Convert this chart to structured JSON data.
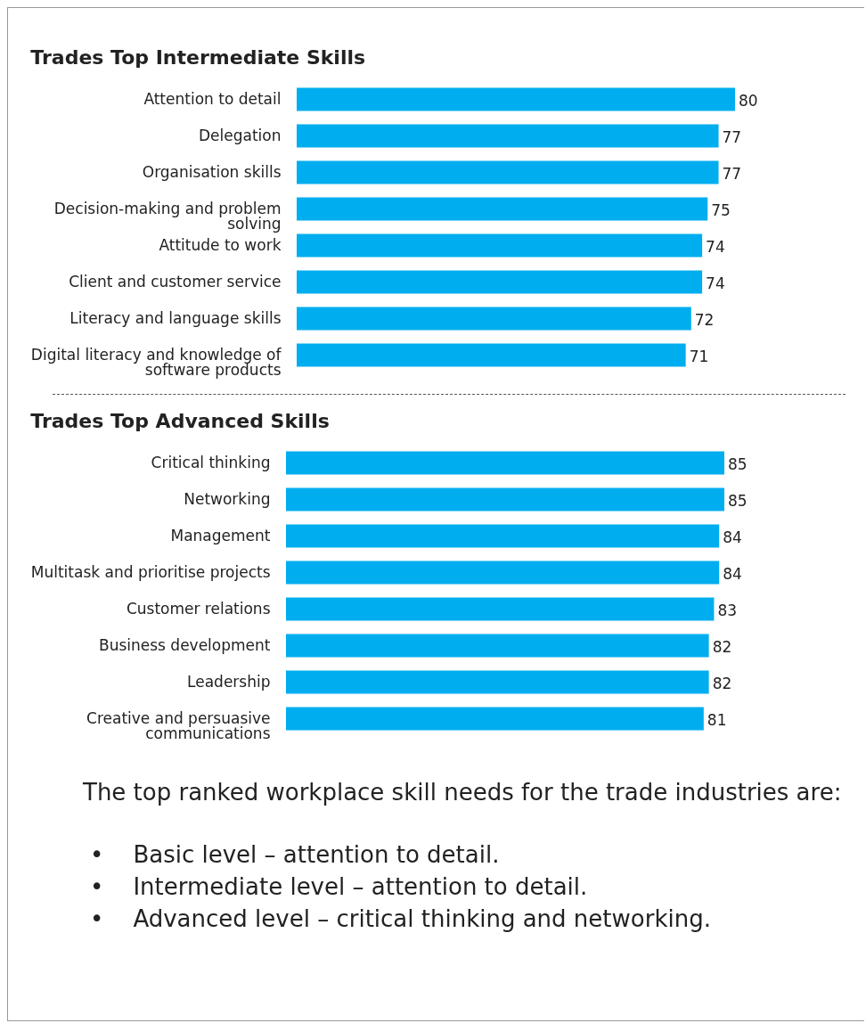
{
  "chart_data": [
    {
      "type": "bar",
      "orientation": "horizontal",
      "title": "Trades Top Intermediate Skills",
      "categories": [
        "Attention to detail",
        "Delegation",
        "Organisation skills",
        "Decision-making and problem solving",
        "Attitude to work",
        "Client and customer service",
        "Literacy and language skills",
        "Digital literacy and knowledge of software products"
      ],
      "values": [
        80,
        77,
        77,
        75,
        74,
        74,
        72,
        71
      ],
      "color": "#00aeef",
      "data_labels": true
    },
    {
      "type": "bar",
      "orientation": "horizontal",
      "title": "Trades Top Advanced Skills",
      "categories": [
        "Critical thinking",
        "Networking",
        "Management",
        "Multitask and prioritise projects",
        "Customer relations",
        "Business development",
        "Leadership",
        "Creative and persuasive communications"
      ],
      "values": [
        85,
        85,
        84,
        84,
        83,
        82,
        82,
        81
      ],
      "color": "#00aeef",
      "data_labels": true,
      "annotations": [
        "The top ranked workplace skill needs for the trade industries are:",
        "•    Basic level – attention to detail.",
        "•    Intermediate level – attention to detail.",
        "•    Advanced level – critical thinking and networking."
      ]
    }
  ]
}
